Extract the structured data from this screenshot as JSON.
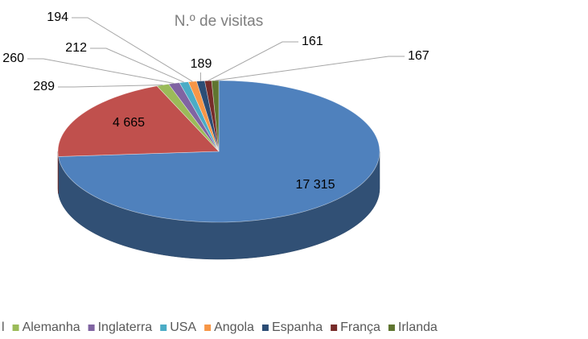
{
  "chart_data": {
    "type": "pie",
    "title": "N.º de visitas",
    "categories": [
      null,
      "l",
      "Alemanha",
      "Inglaterra",
      "USA",
      "Angola",
      "Espanha",
      "França",
      "Irlanda"
    ],
    "values": [
      17315,
      4665,
      289,
      260,
      212,
      194,
      189,
      161,
      167
    ],
    "value_labels": [
      "17 315",
      "4 665",
      "289",
      "260",
      "212",
      "194",
      "189",
      "161",
      "167"
    ],
    "colors": [
      "#4f81bd",
      "#c0504d",
      "#9bbb59",
      "#8064a2",
      "#4bacc6",
      "#f79646",
      "#2c4d75",
      "#772c2a",
      "#5f7530"
    ],
    "legend": "bottom"
  }
}
